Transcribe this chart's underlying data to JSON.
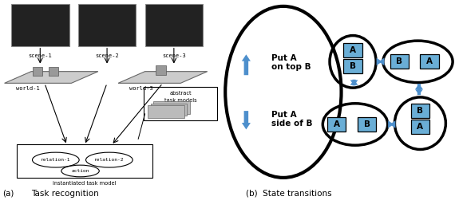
{
  "fig_width": 5.7,
  "fig_height": 2.76,
  "dpi": 100,
  "background_color": "#ffffff",
  "left_panel": {
    "caption_a": "(a)",
    "caption_task": "Task recognition",
    "scenes": [
      "scene-1",
      "scene-2",
      "scene-3"
    ],
    "world_labels": [
      "world-1",
      "world-3"
    ],
    "abstract_box_text": [
      "abstract",
      "task models"
    ],
    "bottom_label": "instantiated task model",
    "relation_labels": [
      "relation-1",
      "relation-2",
      "action"
    ]
  },
  "right_panel": {
    "caption": "(b)  State transitions",
    "big_circle_text1": "Put A\non top B",
    "big_circle_text2": "Put A\nside of B",
    "arrow_color": "#4d8fcc",
    "box_fill_color": "#6aaed6",
    "box_edge_color": "#000000",
    "ellipse_lw": 2.5,
    "big_circle_lw": 3.0
  }
}
